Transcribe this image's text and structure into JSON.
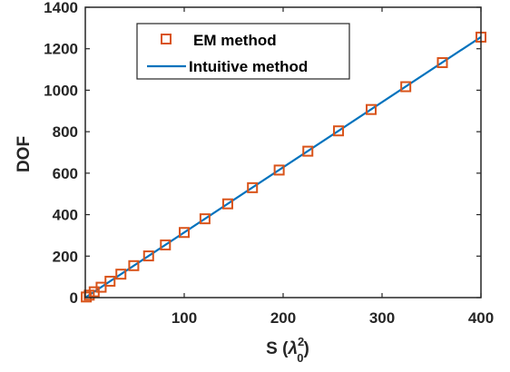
{
  "chart_data": {
    "type": "line",
    "xlabel": "S (λ₀²)",
    "xlabel_base": "S (",
    "xlabel_lambda": "λ",
    "xlabel_sub": "0",
    "xlabel_sup": "2",
    "xlabel_close": ")",
    "ylabel": "DOF",
    "xlim": [
      0,
      400
    ],
    "ylim": [
      0,
      1400
    ],
    "xticks": [
      100,
      200,
      300,
      400
    ],
    "yticks": [
      0,
      200,
      400,
      600,
      800,
      1000,
      1200,
      1400
    ],
    "grid": false,
    "legend_position": "top-left",
    "series": [
      {
        "name": "EM method",
        "kind": "scatter",
        "marker": "square",
        "color": "#D95319",
        "x": [
          1,
          4,
          9,
          16,
          25,
          36,
          49,
          64,
          81,
          100,
          121,
          144,
          169,
          196,
          225,
          256,
          289,
          324,
          361,
          400
        ],
        "y": [
          3,
          12,
          28,
          50,
          79,
          113,
          154,
          201,
          254,
          314,
          380,
          452,
          530,
          615,
          706,
          804,
          907,
          1017,
          1133,
          1256
        ]
      },
      {
        "name": "Intuitive method",
        "kind": "line",
        "color": "#0072BD",
        "x": [
          0,
          400
        ],
        "y": [
          0,
          1256.6
        ]
      }
    ]
  }
}
